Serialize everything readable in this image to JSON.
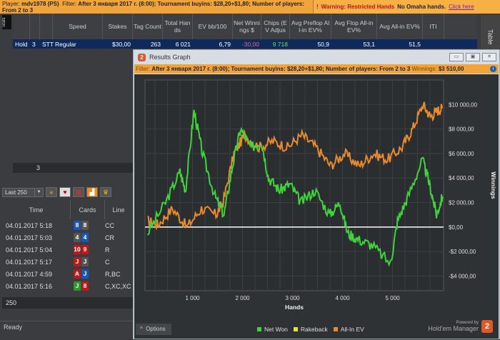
{
  "topbar": {
    "player_label": "Player:",
    "player": "mdv1978 (PS)",
    "filter_label": "Filter:",
    "filter": "After 3 января 2017 г. (8:00); Tournament buyins: $28,20+$1,80; Number of players: From 2 to 3",
    "warning": "Warning: Restricted Hands",
    "omaha": "No Omaha hands.",
    "click": "Click here"
  },
  "side_tabs": {
    "stats": "Stats",
    "table": "Table"
  },
  "grid": {
    "headers": [
      "",
      "",
      "",
      "Speed",
      "Stakes",
      "Tag Count",
      "Total Hands",
      "EV bb/100",
      "Net Winnings $",
      "Chips (EV Adjus",
      "Avg Preflop All-in EV%",
      "Avg Flop All-in EV%",
      "Avg All-in EV%",
      "ITI"
    ],
    "row": [
      "Hold",
      "3",
      "STT",
      "Regular",
      "$30,00",
      "263",
      "6 021",
      "6,79",
      "-30,00",
      "9 718",
      "50,9",
      "53,1",
      "51,5",
      ""
    ],
    "count": "3"
  },
  "hands": {
    "range": "Last 250",
    "headers": [
      "Time",
      "Cards",
      "Line"
    ],
    "rows": [
      {
        "time": "04.01.2017 5:18",
        "c1": "8",
        "c1c": "#1a55b8",
        "c2": "8",
        "c2c": "#555",
        "line": "CC"
      },
      {
        "time": "04.01.2017 5:03",
        "c1": "4",
        "c1c": "#555",
        "c2": "4",
        "c2c": "#1a55b8",
        "line": "CR"
      },
      {
        "time": "04.01.2017 5:04",
        "c1": "10",
        "c1c": "#c01818",
        "c2": "9",
        "c2c": "#c01818",
        "line": "R"
      },
      {
        "time": "04.01.2017 5:17",
        "c1": "J",
        "c1c": "#c01818",
        "c2": "J",
        "c2c": "#555",
        "line": "C"
      },
      {
        "time": "04.01.2017 4:59",
        "c1": "A",
        "c1c": "#c01818",
        "c2": "J",
        "c2c": "#1a55b8",
        "line": "R,BC"
      },
      {
        "time": "04.01.2017 5:16",
        "c1": "J",
        "c1c": "#2a9a2a",
        "c2": "8",
        "c2c": "#c01818",
        "line": "C,XC,XC"
      }
    ],
    "footer": "250"
  },
  "status": "Ready",
  "graph": {
    "title": "Results Graph",
    "filter_label": "Filter:",
    "filter": "After 3 января 2017 г. (8:00); Tournament buyins: $28,20+$1,80; Number of players: From 2 to 3",
    "winnings_label": "Winnings:",
    "winnings": "$3 510,00",
    "options": "Options",
    "powered": "Powered by",
    "brand": "Hold'em Manager",
    "brand_num": "2"
  },
  "chart_data": {
    "type": "line",
    "xlabel": "Hands",
    "ylabel": "Winnings",
    "xlim": [
      50,
      6021
    ],
    "ylim": [
      -5200,
      12000
    ],
    "xticks": [
      {
        "v": 1000,
        "label": "1 000"
      },
      {
        "v": 2000,
        "label": "2 000"
      },
      {
        "v": 3000,
        "label": "3 000"
      },
      {
        "v": 4000,
        "label": "4 000"
      },
      {
        "v": 5000,
        "label": "5 000"
      }
    ],
    "yticks": [
      {
        "v": 10000,
        "label": "$10 000,00"
      },
      {
        "v": 8000,
        "label": "$8 000,00"
      },
      {
        "v": 6000,
        "label": "$6 000,00"
      },
      {
        "v": 4000,
        "label": "$4 000,00"
      },
      {
        "v": 2000,
        "label": "$2 000,00"
      },
      {
        "v": 0,
        "label": "$0,00"
      },
      {
        "v": -2000,
        "label": "-$2 000,00"
      },
      {
        "v": -4000,
        "label": "-$4 000,00"
      }
    ],
    "grid": true,
    "legend": "bottom",
    "series": [
      {
        "name": "Net Won",
        "color": "#3fd43a",
        "x": [
          100,
          460,
          750,
          860,
          1030,
          1200,
          1450,
          1630,
          1800,
          1960,
          2170,
          2380,
          2520,
          2740,
          2950,
          3170,
          3450,
          3740,
          3950,
          4100,
          4310,
          4600,
          4960,
          5100,
          5310,
          5600,
          5740,
          5880,
          6000
        ],
        "y": [
          -500,
          2000,
          4500,
          3000,
          9500,
          6000,
          2500,
          1000,
          5000,
          8000,
          6500,
          7000,
          4000,
          3000,
          3500,
          2000,
          3000,
          1000,
          2000,
          -500,
          -1000,
          -1500,
          -3000,
          500,
          2500,
          5500,
          3500,
          1000,
          2500
        ]
      },
      {
        "name": "Rakeback",
        "color": "#e8e040",
        "x": [],
        "y": []
      },
      {
        "name": "All-In EV",
        "color": "#e88a2e",
        "x": [
          100,
          310,
          600,
          890,
          1180,
          1470,
          1610,
          1830,
          2040,
          2330,
          2610,
          2900,
          3190,
          3470,
          3760,
          4040,
          4330,
          4620,
          4900,
          5190,
          5400,
          5610,
          5760,
          5900,
          6000
        ],
        "y": [
          500,
          200,
          1500,
          0,
          1500,
          1000,
          2000,
          6000,
          7500,
          6500,
          7000,
          6500,
          7500,
          6500,
          5000,
          6000,
          5000,
          6000,
          5500,
          6500,
          8000,
          10000,
          9000,
          9500,
          9700
        ]
      }
    ]
  }
}
